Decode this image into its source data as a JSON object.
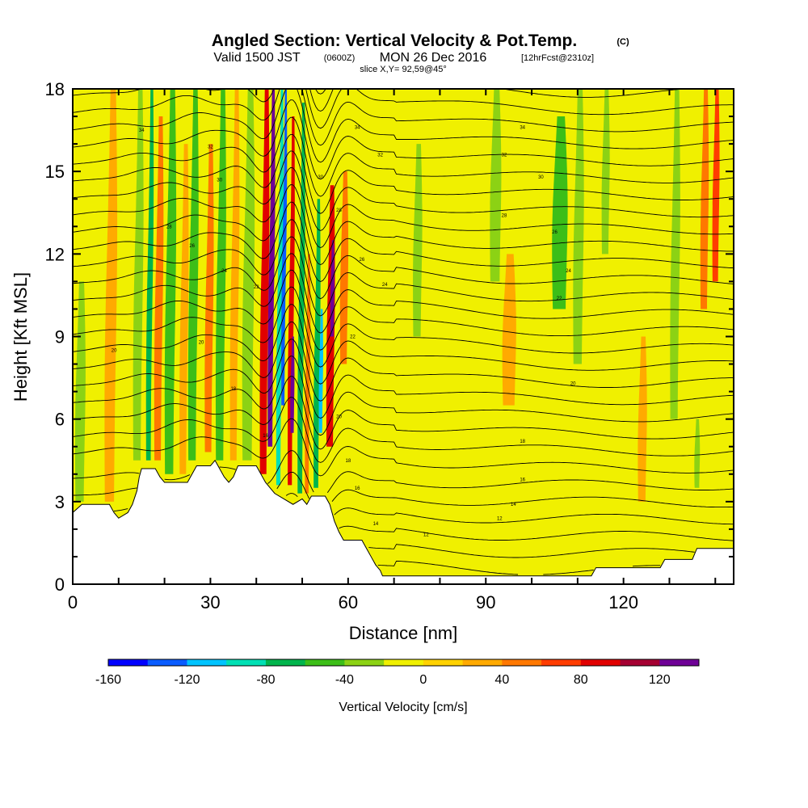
{
  "header": {
    "title": "Angled Section: Vertical Velocity & Pot.Temp.",
    "title_unit": "(C)",
    "valid_prefix": "Valid 1500 JST",
    "valid_zulu": "(0600Z)",
    "valid_date": "MON 26 Dec 2016",
    "forecast": "[12hrFcst@2310z]",
    "slice": "slice X,Y= 92,59@45°"
  },
  "chart_data": {
    "type": "heatmap",
    "xlabel": "Distance [nm]",
    "ylabel": "Height [Kft MSL]",
    "xlim": [
      0,
      144
    ],
    "ylim": [
      0,
      18
    ],
    "xticks": [
      0,
      30,
      60,
      90,
      120
    ],
    "yticks": [
      0,
      3,
      6,
      9,
      12,
      15,
      18
    ],
    "colorbar": {
      "label": "Vertical Velocity [cm/s]",
      "min": -160,
      "max": 140,
      "step": 20,
      "tick_values": [
        -160,
        -120,
        -80,
        -40,
        0,
        40,
        80,
        120
      ],
      "colors": [
        "#0000ff",
        "#0a5cff",
        "#00c4ff",
        "#00e0b4",
        "#00b44c",
        "#3cbe18",
        "#8cd214",
        "#f0f000",
        "#ffd200",
        "#ffaa00",
        "#ff7800",
        "#ff3c00",
        "#e10000",
        "#a50032",
        "#6e0096"
      ]
    },
    "terrain_profile": [
      [
        0,
        2.6
      ],
      [
        2,
        2.9
      ],
      [
        8,
        2.9
      ],
      [
        9,
        2.6
      ],
      [
        10,
        2.4
      ],
      [
        12,
        2.6
      ],
      [
        13,
        2.9
      ],
      [
        14,
        3.4
      ],
      [
        14.5,
        3.9
      ],
      [
        15,
        4.2
      ],
      [
        18,
        4.2
      ],
      [
        19,
        3.9
      ],
      [
        20,
        3.7
      ],
      [
        25,
        3.7
      ],
      [
        26,
        4.0
      ],
      [
        27,
        4.3
      ],
      [
        30,
        4.3
      ],
      [
        31,
        4.5
      ],
      [
        32,
        4.2
      ],
      [
        33,
        3.9
      ],
      [
        34,
        3.7
      ],
      [
        35,
        3.9
      ],
      [
        36,
        4.3
      ],
      [
        40,
        4.3
      ],
      [
        41,
        4.0
      ],
      [
        42,
        3.7
      ],
      [
        43,
        3.5
      ],
      [
        44,
        3.3
      ],
      [
        46,
        3.1
      ],
      [
        48,
        2.9
      ],
      [
        50,
        3.1
      ],
      [
        51,
        2.9
      ],
      [
        52,
        3.2
      ],
      [
        55,
        3.2
      ],
      [
        56,
        2.9
      ],
      [
        57,
        2.3
      ],
      [
        58,
        1.9
      ],
      [
        59,
        1.6
      ],
      [
        63,
        1.6
      ],
      [
        64,
        1.3
      ],
      [
        65,
        1.0
      ],
      [
        66,
        0.7
      ],
      [
        67,
        0.5
      ],
      [
        67.5,
        0.3
      ],
      [
        68,
        0.3
      ],
      [
        113,
        0.3
      ],
      [
        114,
        0.6
      ],
      [
        128,
        0.6
      ],
      [
        129,
        0.9
      ],
      [
        135,
        0.9
      ],
      [
        136,
        1.3
      ],
      [
        144,
        1.3
      ]
    ],
    "velocity_bands": [
      {
        "x": 1.5,
        "y0": 3.0,
        "y1": 11.0,
        "w": 1.8,
        "v": -40
      },
      {
        "x": 8,
        "y0": 3.0,
        "y1": 18.0,
        "w": 2.0,
        "v": 30
      },
      {
        "x": 14,
        "y0": 4.5,
        "y1": 18.0,
        "w": 1.6,
        "v": -40
      },
      {
        "x": 16.5,
        "y0": 4.5,
        "y1": 18.0,
        "w": 1.0,
        "v": -80
      },
      {
        "x": 18.5,
        "y0": 4.5,
        "y1": 17.0,
        "w": 1.4,
        "v": 40
      },
      {
        "x": 21,
        "y0": 4.0,
        "y1": 18.0,
        "w": 1.8,
        "v": -60
      },
      {
        "x": 24,
        "y0": 4.0,
        "y1": 16.0,
        "w": 1.4,
        "v": 30
      },
      {
        "x": 26,
        "y0": 4.5,
        "y1": 18.0,
        "w": 1.6,
        "v": -60
      },
      {
        "x": 29.5,
        "y0": 4.8,
        "y1": 16.0,
        "w": 1.4,
        "v": 40
      },
      {
        "x": 32,
        "y0": 4.5,
        "y1": 18.0,
        "w": 1.6,
        "v": -60
      },
      {
        "x": 35,
        "y0": 4.5,
        "y1": 18.0,
        "w": 1.4,
        "v": 30
      },
      {
        "x": 38,
        "y0": 4.5,
        "y1": 18.0,
        "w": 2.0,
        "v": -40
      },
      {
        "x": 41.5,
        "y0": 4.0,
        "y1": 18.0,
        "w": 1.4,
        "v": 80
      },
      {
        "x": 43,
        "y0": 5.0,
        "y1": 18.0,
        "w": 1.0,
        "v": 120
      },
      {
        "x": 44.8,
        "y0": 3.6,
        "y1": 18.0,
        "w": 0.9,
        "v": -100
      },
      {
        "x": 45.8,
        "y0": 6.5,
        "y1": 18.0,
        "w": 0.5,
        "v": -140
      },
      {
        "x": 47.3,
        "y0": 3.6,
        "y1": 17.0,
        "w": 0.9,
        "v": 80
      },
      {
        "x": 47.8,
        "y0": 5.5,
        "y1": 9.0,
        "w": 0.5,
        "v": 120
      },
      {
        "x": 49.5,
        "y0": 3.3,
        "y1": 17.5,
        "w": 1.0,
        "v": -80
      },
      {
        "x": 51,
        "y0": 3.3,
        "y1": 12.0,
        "w": 0.8,
        "v": 40
      },
      {
        "x": 53,
        "y0": 3.5,
        "y1": 14.0,
        "w": 1.0,
        "v": -80
      },
      {
        "x": 54,
        "y0": 5.5,
        "y1": 10.0,
        "w": 0.5,
        "v": -120
      },
      {
        "x": 56,
        "y0": 5.0,
        "y1": 14.5,
        "w": 1.4,
        "v": 80
      },
      {
        "x": 56.5,
        "y0": 9.0,
        "y1": 12.5,
        "w": 0.7,
        "v": 120
      },
      {
        "x": 59,
        "y0": 8.0,
        "y1": 15.0,
        "w": 1.4,
        "v": 40
      },
      {
        "x": 75,
        "y0": 9.0,
        "y1": 16.0,
        "w": 1.6,
        "v": -40
      },
      {
        "x": 92,
        "y0": 11.0,
        "y1": 18.0,
        "w": 2.0,
        "v": -40
      },
      {
        "x": 95,
        "y0": 6.5,
        "y1": 12.0,
        "w": 2.5,
        "v": 20
      },
      {
        "x": 106,
        "y0": 10.0,
        "y1": 17.0,
        "w": 2.8,
        "v": -60
      },
      {
        "x": 110,
        "y0": 8.0,
        "y1": 18.0,
        "w": 1.8,
        "v": -40
      },
      {
        "x": 116,
        "y0": 12.0,
        "y1": 18.0,
        "w": 1.4,
        "v": -40
      },
      {
        "x": 124,
        "y0": 3.0,
        "y1": 9.0,
        "w": 1.6,
        "v": 30
      },
      {
        "x": 131,
        "y0": 6.0,
        "y1": 18.0,
        "w": 1.6,
        "v": -40
      },
      {
        "x": 136,
        "y0": 3.5,
        "y1": 6.0,
        "w": 1.0,
        "v": -40
      },
      {
        "x": 137.5,
        "y0": 10.0,
        "y1": 18.0,
        "w": 1.4,
        "v": 40
      },
      {
        "x": 140,
        "y0": 11.0,
        "y1": 18.0,
        "w": 1.2,
        "v": 60
      }
    ],
    "theta_contours": {
      "levels_count": 30,
      "min_height": 0.5,
      "max_height": 18.5,
      "spacing_kft": 0.62
    },
    "theta_labels": [
      {
        "x": 15,
        "y": 16.5,
        "text": "34"
      },
      {
        "x": 30,
        "y": 15.9,
        "text": "32"
      },
      {
        "x": 32,
        "y": 14.7,
        "text": "30"
      },
      {
        "x": 21,
        "y": 13.0,
        "text": "28"
      },
      {
        "x": 26,
        "y": 12.3,
        "text": "26"
      },
      {
        "x": 33,
        "y": 11.4,
        "text": "24"
      },
      {
        "x": 40,
        "y": 10.8,
        "text": "22"
      },
      {
        "x": 28,
        "y": 8.8,
        "text": "20"
      },
      {
        "x": 35,
        "y": 7.1,
        "text": "18"
      },
      {
        "x": 42,
        "y": 5.4,
        "text": "16"
      },
      {
        "x": 62,
        "y": 16.6,
        "text": "34"
      },
      {
        "x": 67,
        "y": 15.6,
        "text": "32"
      },
      {
        "x": 54,
        "y": 14.8,
        "text": "30"
      },
      {
        "x": 58,
        "y": 13.6,
        "text": "28"
      },
      {
        "x": 63,
        "y": 11.8,
        "text": "26"
      },
      {
        "x": 68,
        "y": 10.9,
        "text": "24"
      },
      {
        "x": 61,
        "y": 9.0,
        "text": "22"
      },
      {
        "x": 58,
        "y": 6.1,
        "text": "20"
      },
      {
        "x": 60,
        "y": 4.5,
        "text": "18"
      },
      {
        "x": 62,
        "y": 3.5,
        "text": "16"
      },
      {
        "x": 66,
        "y": 2.2,
        "text": "14"
      },
      {
        "x": 77,
        "y": 1.8,
        "text": "12"
      },
      {
        "x": 98,
        "y": 16.6,
        "text": "34"
      },
      {
        "x": 94,
        "y": 15.6,
        "text": "32"
      },
      {
        "x": 102,
        "y": 14.8,
        "text": "30"
      },
      {
        "x": 94,
        "y": 13.4,
        "text": "28"
      },
      {
        "x": 105,
        "y": 12.8,
        "text": "26"
      },
      {
        "x": 108,
        "y": 11.4,
        "text": "24"
      },
      {
        "x": 106,
        "y": 10.4,
        "text": "22"
      },
      {
        "x": 109,
        "y": 7.3,
        "text": "20"
      },
      {
        "x": 98,
        "y": 5.2,
        "text": "18"
      },
      {
        "x": 98,
        "y": 3.8,
        "text": "16"
      },
      {
        "x": 96,
        "y": 2.9,
        "text": "14"
      },
      {
        "x": 93,
        "y": 2.4,
        "text": "12"
      },
      {
        "x": 9,
        "y": 8.5,
        "text": "20"
      }
    ]
  }
}
